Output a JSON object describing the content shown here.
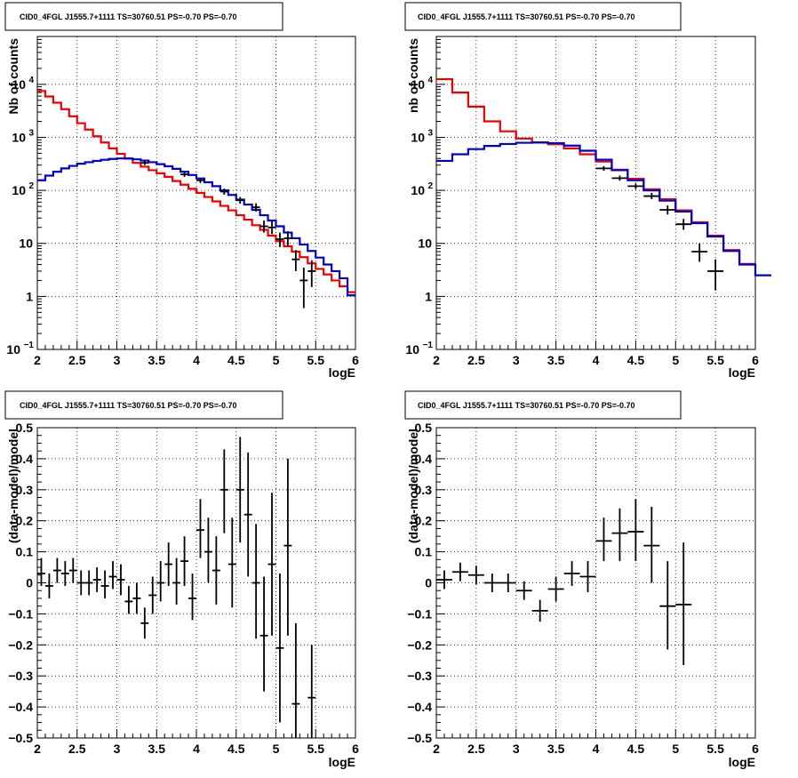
{
  "colors": {
    "data": "#000000",
    "total_model": "#ee0000",
    "component_model": "#0000cc",
    "grid": "#000000"
  },
  "chart_data": [
    {
      "id": "p1",
      "type": "line",
      "title": "CID0_4FGL J1555.7+1111 TS=30760.51 PS=-0.70 PS=-0.70",
      "xlabel": "logE",
      "ylabel": "Nb of counts",
      "xlim": [
        2,
        6
      ],
      "ylim": [
        0.1,
        80000
      ],
      "yscale": "log",
      "grid": true,
      "xticks": [
        "2",
        "2.5",
        "3",
        "3.5",
        "4",
        "4.5",
        "5",
        "5.5",
        "6"
      ],
      "yticks": [
        {
          "v": 0.1,
          "label": "10",
          "sup": "−1"
        },
        {
          "v": 1,
          "label": "1",
          "sup": ""
        },
        {
          "v": 10,
          "label": "10",
          "sup": ""
        },
        {
          "v": 100,
          "label": "10",
          "sup": "2"
        },
        {
          "v": 1000,
          "label": "10",
          "sup": "3"
        },
        {
          "v": 10000,
          "label": "10",
          "sup": "4"
        }
      ],
      "series": [
        {
          "role": "total_model",
          "x0": 2.0,
          "dx": 0.1,
          "values": [
            7500,
            5900,
            4500,
            3400,
            2500,
            1850,
            1400,
            1050,
            800,
            620,
            490,
            400,
            330,
            280,
            240,
            210,
            180,
            150,
            128,
            107,
            90,
            75,
            62,
            51,
            42,
            34,
            28,
            22,
            18,
            14,
            11,
            8.8,
            7,
            5.5,
            4.2,
            3.3,
            2.6,
            2.0,
            1.55,
            1.2
          ]
        },
        {
          "role": "component_model",
          "x0": 2.0,
          "dx": 0.1,
          "values": [
            155,
            190,
            225,
            260,
            290,
            318,
            340,
            360,
            378,
            392,
            400,
            398,
            385,
            365,
            340,
            312,
            285,
            255,
            225,
            195,
            168,
            142,
            120,
            100,
            82,
            67,
            54,
            43,
            34,
            27,
            21,
            16,
            12.5,
            9.5,
            7.2,
            5.4,
            4.0,
            3.0,
            2.2,
            1.05
          ]
        }
      ],
      "points": [
        {
          "x": 3.35,
          "y": 330,
          "xerr": 0.05,
          "ylo": 300,
          "yhi": 360
        },
        {
          "x": 3.85,
          "y": 200,
          "xerr": 0.05,
          "ylo": 180,
          "yhi": 222
        },
        {
          "x": 4.05,
          "y": 155,
          "xerr": 0.05,
          "ylo": 138,
          "yhi": 172
        },
        {
          "x": 4.35,
          "y": 95,
          "xerr": 0.05,
          "ylo": 83,
          "yhi": 108
        },
        {
          "x": 4.55,
          "y": 65,
          "xerr": 0.05,
          "ylo": 56,
          "yhi": 75
        },
        {
          "x": 4.75,
          "y": 48,
          "xerr": 0.05,
          "ylo": 40,
          "yhi": 57
        },
        {
          "x": 4.85,
          "y": 21,
          "xerr": 0.05,
          "ylo": 16,
          "yhi": 27
        },
        {
          "x": 4.95,
          "y": 20,
          "xerr": 0.05,
          "ylo": 15,
          "yhi": 26
        },
        {
          "x": 5.05,
          "y": 12,
          "xerr": 0.05,
          "ylo": 8.5,
          "yhi": 16
        },
        {
          "x": 5.15,
          "y": 12.5,
          "xerr": 0.05,
          "ylo": 9,
          "yhi": 17
        },
        {
          "x": 5.25,
          "y": 5,
          "xerr": 0.05,
          "ylo": 3,
          "yhi": 7.5
        },
        {
          "x": 5.35,
          "y": 2,
          "xerr": 0.05,
          "ylo": 0.6,
          "yhi": 3.5
        },
        {
          "x": 5.45,
          "y": 3,
          "xerr": 0.05,
          "ylo": 1.5,
          "yhi": 4.8
        }
      ]
    },
    {
      "id": "p2",
      "type": "line",
      "title": "CID0_4FGL J1555.7+1111 TS=30760.51 PS=-0.70 PS=-0.70",
      "xlabel": "logE",
      "ylabel": "nb of counts",
      "xlim": [
        2,
        6
      ],
      "ylim": [
        0.1,
        80000
      ],
      "yscale": "log",
      "grid": true,
      "xticks": [
        "2",
        "2.5",
        "3",
        "3.5",
        "4",
        "4.5",
        "5",
        "5.5",
        "6"
      ],
      "yticks": [
        {
          "v": 0.1,
          "label": "10",
          "sup": "−1"
        },
        {
          "v": 1,
          "label": "1",
          "sup": ""
        },
        {
          "v": 10,
          "label": "10",
          "sup": ""
        },
        {
          "v": 100,
          "label": "10",
          "sup": "2"
        },
        {
          "v": 1000,
          "label": "10",
          "sup": "3"
        },
        {
          "v": 10000,
          "label": "10",
          "sup": "4"
        }
      ],
      "series": [
        {
          "role": "total_model",
          "x0": 2.0,
          "dx": 0.2,
          "values": [
            12500,
            7000,
            3800,
            2000,
            1300,
            950,
            800,
            740,
            620,
            480,
            350,
            245,
            165,
            105,
            68,
            42,
            25,
            14,
            7.5,
            4.1
          ]
        },
        {
          "role": "component_model",
          "x0": 2.0,
          "dx": 0.2,
          "values": [
            360,
            480,
            600,
            690,
            750,
            790,
            800,
            780,
            700,
            560,
            380,
            240,
            155,
            100,
            64,
            40,
            24,
            13.5,
            7.2,
            4.0,
            2.5,
            2.5
          ]
        }
      ],
      "points": [
        {
          "x": 4.1,
          "y": 260,
          "xerr": 0.1,
          "ylo": 235,
          "yhi": 287
        },
        {
          "x": 4.3,
          "y": 170,
          "xerr": 0.1,
          "ylo": 152,
          "yhi": 190
        },
        {
          "x": 4.5,
          "y": 120,
          "xerr": 0.1,
          "ylo": 106,
          "yhi": 135
        },
        {
          "x": 4.7,
          "y": 78,
          "xerr": 0.1,
          "ylo": 68,
          "yhi": 90
        },
        {
          "x": 4.9,
          "y": 43,
          "xerr": 0.1,
          "ylo": 35,
          "yhi": 52
        },
        {
          "x": 5.1,
          "y": 23,
          "xerr": 0.1,
          "ylo": 18,
          "yhi": 29
        },
        {
          "x": 5.3,
          "y": 7,
          "xerr": 0.1,
          "ylo": 4.5,
          "yhi": 10
        },
        {
          "x": 5.5,
          "y": 3,
          "xerr": 0.1,
          "ylo": 1.3,
          "yhi": 5
        }
      ]
    },
    {
      "id": "p3",
      "type": "scatter",
      "title": "CID0_4FGL J1555.7+1111 TS=30760.51 PS=-0.70 PS=-0.70",
      "xlabel": "logE",
      "ylabel": "(data-model)/model",
      "xlim": [
        2,
        6
      ],
      "ylim": [
        -0.5,
        0.5
      ],
      "yscale": "linear",
      "grid": true,
      "xticks": [
        "2",
        "2.5",
        "3",
        "3.5",
        "4",
        "4.5",
        "5",
        "5.5",
        "6"
      ],
      "yticks": [
        {
          "v": -0.5,
          "label": "−0.5"
        },
        {
          "v": -0.4,
          "label": "−0.4"
        },
        {
          "v": -0.3,
          "label": "−0.3"
        },
        {
          "v": -0.2,
          "label": "−0.2"
        },
        {
          "v": -0.1,
          "label": "−0.1"
        },
        {
          "v": 0,
          "label": "0"
        },
        {
          "v": 0.1,
          "label": "0.1"
        },
        {
          "v": 0.2,
          "label": "0.2"
        },
        {
          "v": 0.3,
          "label": "0.3"
        },
        {
          "v": 0.4,
          "label": "0.4"
        },
        {
          "v": 0.5,
          "label": "0.5"
        }
      ],
      "points": [
        {
          "x": 2.05,
          "y": 0.03,
          "xerr": 0.05,
          "ylo": -0.01,
          "yhi": 0.08
        },
        {
          "x": 2.15,
          "y": -0.01,
          "xerr": 0.05,
          "ylo": -0.05,
          "yhi": 0.03
        },
        {
          "x": 2.25,
          "y": 0.04,
          "xerr": 0.05,
          "ylo": 0.0,
          "yhi": 0.08
        },
        {
          "x": 2.35,
          "y": 0.03,
          "xerr": 0.05,
          "ylo": -0.01,
          "yhi": 0.07
        },
        {
          "x": 2.45,
          "y": 0.04,
          "xerr": 0.05,
          "ylo": 0.0,
          "yhi": 0.08
        },
        {
          "x": 2.55,
          "y": 0.0,
          "xerr": 0.05,
          "ylo": -0.04,
          "yhi": 0.04
        },
        {
          "x": 2.65,
          "y": 0.0,
          "xerr": 0.05,
          "ylo": -0.04,
          "yhi": 0.04
        },
        {
          "x": 2.75,
          "y": 0.01,
          "xerr": 0.05,
          "ylo": -0.03,
          "yhi": 0.05
        },
        {
          "x": 2.85,
          "y": -0.01,
          "xerr": 0.05,
          "ylo": -0.05,
          "yhi": 0.04
        },
        {
          "x": 2.95,
          "y": 0.02,
          "xerr": 0.05,
          "ylo": -0.02,
          "yhi": 0.07
        },
        {
          "x": 3.05,
          "y": 0.01,
          "xerr": 0.05,
          "ylo": -0.04,
          "yhi": 0.06
        },
        {
          "x": 3.15,
          "y": -0.06,
          "xerr": 0.05,
          "ylo": -0.1,
          "yhi": -0.01
        },
        {
          "x": 3.25,
          "y": -0.05,
          "xerr": 0.05,
          "ylo": -0.1,
          "yhi": 0.0
        },
        {
          "x": 3.35,
          "y": -0.13,
          "xerr": 0.05,
          "ylo": -0.18,
          "yhi": -0.08
        },
        {
          "x": 3.45,
          "y": -0.04,
          "xerr": 0.05,
          "ylo": -0.1,
          "yhi": 0.02
        },
        {
          "x": 3.55,
          "y": 0.0,
          "xerr": 0.05,
          "ylo": -0.06,
          "yhi": 0.07
        },
        {
          "x": 3.65,
          "y": 0.06,
          "xerr": 0.05,
          "ylo": -0.01,
          "yhi": 0.13
        },
        {
          "x": 3.75,
          "y": 0.0,
          "xerr": 0.05,
          "ylo": -0.07,
          "yhi": 0.08
        },
        {
          "x": 3.85,
          "y": 0.07,
          "xerr": 0.05,
          "ylo": -0.01,
          "yhi": 0.15
        },
        {
          "x": 3.95,
          "y": -0.05,
          "xerr": 0.05,
          "ylo": -0.12,
          "yhi": 0.03
        },
        {
          "x": 4.05,
          "y": 0.17,
          "xerr": 0.05,
          "ylo": 0.08,
          "yhi": 0.27
        },
        {
          "x": 4.15,
          "y": 0.1,
          "xerr": 0.05,
          "ylo": 0.0,
          "yhi": 0.21
        },
        {
          "x": 4.25,
          "y": 0.04,
          "xerr": 0.05,
          "ylo": -0.07,
          "yhi": 0.15
        },
        {
          "x": 4.35,
          "y": 0.3,
          "xerr": 0.05,
          "ylo": 0.16,
          "yhi": 0.43
        },
        {
          "x": 4.45,
          "y": 0.06,
          "xerr": 0.05,
          "ylo": -0.08,
          "yhi": 0.21
        },
        {
          "x": 4.55,
          "y": 0.3,
          "xerr": 0.05,
          "ylo": 0.13,
          "yhi": 0.47
        },
        {
          "x": 4.65,
          "y": 0.22,
          "xerr": 0.05,
          "ylo": 0.02,
          "yhi": 0.42
        },
        {
          "x": 4.75,
          "y": 0.0,
          "xerr": 0.05,
          "ylo": -0.18,
          "yhi": 0.19
        },
        {
          "x": 4.85,
          "y": -0.17,
          "xerr": 0.05,
          "ylo": -0.35,
          "yhi": 0.02
        },
        {
          "x": 4.95,
          "y": 0.06,
          "xerr": 0.05,
          "ylo": -0.17,
          "yhi": 0.29
        },
        {
          "x": 5.05,
          "y": -0.21,
          "xerr": 0.05,
          "ylo": -0.45,
          "yhi": 0.03
        },
        {
          "x": 5.15,
          "y": 0.12,
          "xerr": 0.05,
          "ylo": -0.17,
          "yhi": 0.4
        },
        {
          "x": 5.25,
          "y": -0.39,
          "xerr": 0.05,
          "ylo": -0.5,
          "yhi": -0.13
        },
        {
          "x": 5.45,
          "y": -0.37,
          "xerr": 0.05,
          "ylo": -0.5,
          "yhi": -0.2
        }
      ]
    },
    {
      "id": "p4",
      "type": "scatter",
      "title": "CID0_4FGL J1555.7+1111 TS=30760.51 PS=-0.70 PS=-0.70",
      "xlabel": "logE",
      "ylabel": "(data-model)/model",
      "xlim": [
        2,
        6
      ],
      "ylim": [
        -0.5,
        0.5
      ],
      "yscale": "linear",
      "grid": true,
      "xticks": [
        "2",
        "2.5",
        "3",
        "3.5",
        "4",
        "4.5",
        "5",
        "5.5",
        "6"
      ],
      "yticks": [
        {
          "v": -0.5,
          "label": "−0.5"
        },
        {
          "v": -0.4,
          "label": "−0.4"
        },
        {
          "v": -0.3,
          "label": "−0.3"
        },
        {
          "v": -0.2,
          "label": "−0.2"
        },
        {
          "v": -0.1,
          "label": "−0.1"
        },
        {
          "v": 0,
          "label": "0"
        },
        {
          "v": 0.1,
          "label": "0.1"
        },
        {
          "v": 0.2,
          "label": "0.2"
        },
        {
          "v": 0.3,
          "label": "0.3"
        },
        {
          "v": 0.4,
          "label": "0.4"
        },
        {
          "v": 0.5,
          "label": "0.5"
        }
      ],
      "points": [
        {
          "x": 2.1,
          "y": 0.01,
          "xerr": 0.1,
          "ylo": -0.02,
          "yhi": 0.04
        },
        {
          "x": 2.3,
          "y": 0.035,
          "xerr": 0.1,
          "ylo": 0.005,
          "yhi": 0.065
        },
        {
          "x": 2.5,
          "y": 0.025,
          "xerr": 0.1,
          "ylo": -0.005,
          "yhi": 0.055
        },
        {
          "x": 2.7,
          "y": 0.0,
          "xerr": 0.1,
          "ylo": -0.03,
          "yhi": 0.03
        },
        {
          "x": 2.9,
          "y": 0.0,
          "xerr": 0.1,
          "ylo": -0.03,
          "yhi": 0.03
        },
        {
          "x": 3.1,
          "y": -0.025,
          "xerr": 0.1,
          "ylo": -0.055,
          "yhi": 0.005
        },
        {
          "x": 3.3,
          "y": -0.09,
          "xerr": 0.1,
          "ylo": -0.125,
          "yhi": -0.055
        },
        {
          "x": 3.5,
          "y": -0.02,
          "xerr": 0.1,
          "ylo": -0.06,
          "yhi": 0.02
        },
        {
          "x": 3.7,
          "y": 0.03,
          "xerr": 0.1,
          "ylo": -0.01,
          "yhi": 0.07
        },
        {
          "x": 3.9,
          "y": 0.02,
          "xerr": 0.1,
          "ylo": -0.03,
          "yhi": 0.07
        },
        {
          "x": 4.1,
          "y": 0.135,
          "xerr": 0.1,
          "ylo": 0.07,
          "yhi": 0.21
        },
        {
          "x": 4.3,
          "y": 0.16,
          "xerr": 0.1,
          "ylo": 0.07,
          "yhi": 0.24
        },
        {
          "x": 4.5,
          "y": 0.165,
          "xerr": 0.1,
          "ylo": 0.07,
          "yhi": 0.27
        },
        {
          "x": 4.7,
          "y": 0.12,
          "xerr": 0.1,
          "ylo": 0.0,
          "yhi": 0.245
        },
        {
          "x": 4.9,
          "y": -0.075,
          "xerr": 0.1,
          "ylo": -0.215,
          "yhi": 0.07
        },
        {
          "x": 5.1,
          "y": -0.07,
          "xerr": 0.1,
          "ylo": -0.265,
          "yhi": 0.13
        }
      ]
    }
  ]
}
